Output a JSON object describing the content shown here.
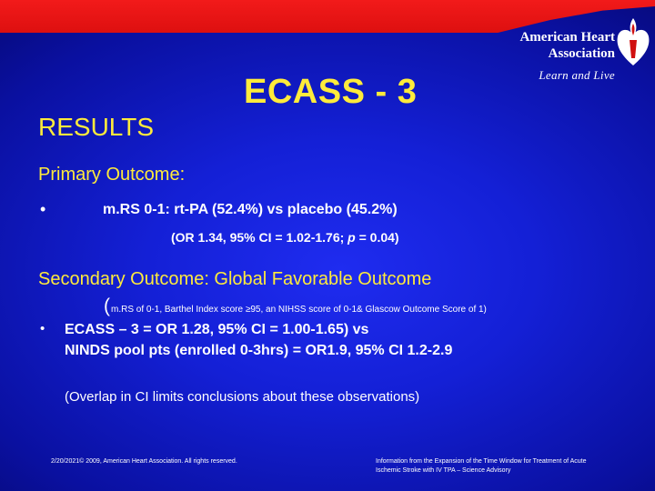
{
  "logo": {
    "name_line1": "American Heart",
    "name_line2": "Association",
    "tagline": "Learn and Live"
  },
  "title": "ECASS - 3",
  "section": "RESULTS",
  "primary": {
    "heading": "Primary Outcome:",
    "bullet": "•",
    "line1": "m.RS 0-1:  rt-PA (52.4%) vs placebo (45.2%)",
    "line2_a": "(OR 1.34, 95% CI = 1.02-1.76; ",
    "line2_p": "p",
    "line2_b": " = 0.04)"
  },
  "secondary": {
    "heading": "Secondary Outcome: Global Favorable Outcome",
    "paren": "(",
    "definition": "m.RS of 0-1, Barthel Index score ≥95, an NIHSS score of 0-1& Glascow Outcome Score of 1)",
    "bullet": "•",
    "line1": "ECASS – 3  =  OR 1.28, 95% CI = 1.00-1.65) vs",
    "line2": "NINDS pool pts (enrolled 0-3hrs) = OR1.9, 95% CI 1.2-2.9",
    "note": "(Overlap in CI limits conclusions about these observations)"
  },
  "footer": {
    "left": "2/20/2021© 2009, American Heart Association. All rights reserved.",
    "right_line1": "Information from the Expansion of the Time Window for Treatment of Acute",
    "right_line2": "Ischemic Stroke with IV TPA – Science Advisory"
  },
  "colors": {
    "heading": "#ffeb3b",
    "body_text": "#ffffff",
    "background": "#1420d6",
    "top_bar": "#e01010"
  }
}
